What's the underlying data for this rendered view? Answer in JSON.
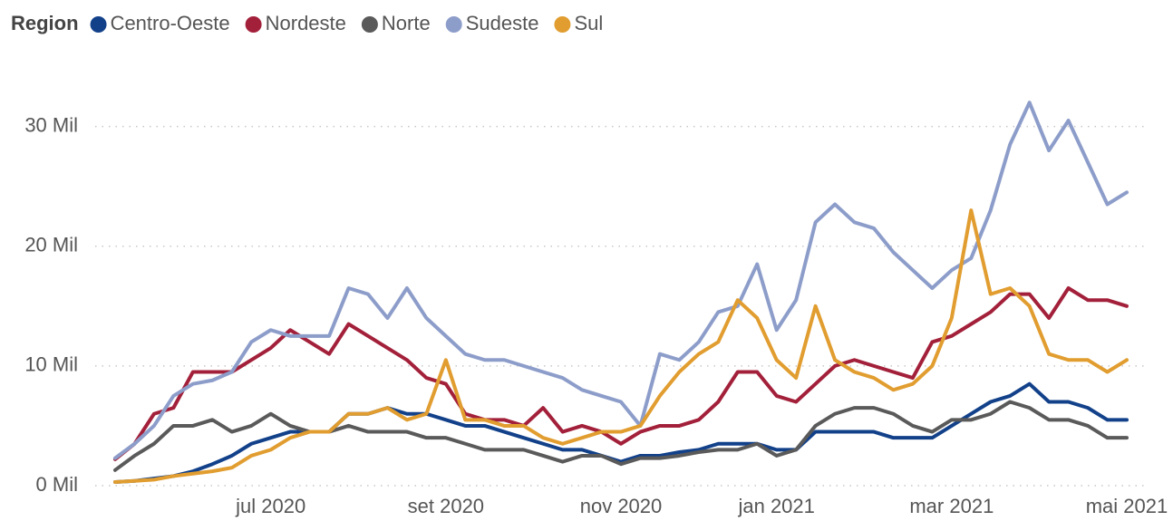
{
  "chart_data": {
    "type": "line",
    "legend_title": "Region",
    "categories": [
      null,
      null,
      null,
      null,
      null,
      null,
      null,
      null,
      "jul 2020",
      null,
      null,
      null,
      null,
      null,
      null,
      null,
      null,
      "set 2020",
      null,
      null,
      null,
      null,
      null,
      null,
      null,
      null,
      "nov 2020",
      null,
      null,
      null,
      null,
      null,
      null,
      null,
      "jan 2021",
      null,
      null,
      null,
      null,
      null,
      null,
      null,
      null,
      "mar 2021",
      null,
      null,
      null,
      null,
      null,
      null,
      null,
      null,
      "mai 2021"
    ],
    "ylim": [
      0,
      33
    ],
    "yticks": [
      {
        "value": 0,
        "label": "0 Mil"
      },
      {
        "value": 10,
        "label": "10 Mil"
      },
      {
        "value": 20,
        "label": "20 Mil"
      },
      {
        "value": 30,
        "label": "30 Mil"
      }
    ],
    "grid": true,
    "series": [
      {
        "name": "Centro-Oeste",
        "color": "#12418a",
        "values": [
          0.3,
          0.4,
          0.6,
          0.8,
          1.2,
          1.8,
          2.5,
          3.5,
          4,
          4.5,
          4.5,
          4.5,
          6,
          6,
          6.5,
          6,
          6,
          5.5,
          5,
          5,
          4.5,
          4,
          3.5,
          3,
          3,
          2.5,
          2,
          2.5,
          2.5,
          2.8,
          3,
          3.5,
          3.5,
          3.5,
          3,
          3,
          4.5,
          4.5,
          4.5,
          4.5,
          4,
          4,
          4,
          5,
          6,
          7,
          7.5,
          8.5,
          7,
          7,
          6.5,
          5.5,
          5.5
        ]
      },
      {
        "name": "Nordeste",
        "color": "#a3203a",
        "values": [
          2.2,
          3.5,
          6,
          6.5,
          9.5,
          9.5,
          9.5,
          10.5,
          11.5,
          13,
          12,
          11,
          13.5,
          12.5,
          11.5,
          10.5,
          9,
          8.5,
          6,
          5.5,
          5.5,
          5,
          6.5,
          4.5,
          5,
          4.5,
          3.5,
          4.5,
          5,
          5,
          5.5,
          7,
          9.5,
          9.5,
          7.5,
          7,
          8.5,
          10,
          10.5,
          10,
          9.5,
          9,
          12,
          12.5,
          13.5,
          14.5,
          16,
          16,
          14,
          16.5,
          15.5,
          15.5,
          15
        ]
      },
      {
        "name": "Norte",
        "color": "#5a5a5a",
        "values": [
          1.3,
          2.5,
          3.5,
          5,
          5,
          5.5,
          4.5,
          5,
          6,
          5,
          4.5,
          4.5,
          5,
          4.5,
          4.5,
          4.5,
          4,
          4,
          3.5,
          3,
          3,
          3,
          2.5,
          2,
          2.5,
          2.5,
          1.8,
          2.3,
          2.3,
          2.5,
          2.8,
          3,
          3,
          3.5,
          2.5,
          3,
          5,
          6,
          6.5,
          6.5,
          6,
          5,
          4.5,
          5.5,
          5.5,
          6,
          7,
          6.5,
          5.5,
          5.5,
          5,
          4,
          4
        ]
      },
      {
        "name": "Sudeste",
        "color": "#8d9dca",
        "values": [
          2.3,
          3.5,
          5,
          7.5,
          8.5,
          8.8,
          9.5,
          12,
          13,
          12.5,
          12.5,
          12.5,
          16.5,
          16,
          14,
          16.5,
          14,
          12.5,
          11,
          10.5,
          10.5,
          10,
          9.5,
          9,
          8,
          7.5,
          7,
          5,
          11,
          10.5,
          12,
          14.5,
          15,
          18.5,
          13,
          15.5,
          22,
          23.5,
          22,
          21.5,
          19.5,
          18,
          16.5,
          18,
          19,
          23,
          28.5,
          32,
          28,
          30.5,
          27,
          23.5,
          24.5
        ]
      },
      {
        "name": "Sul",
        "color": "#e19d2f",
        "values": [
          0.3,
          0.4,
          0.5,
          0.8,
          1,
          1.2,
          1.5,
          2.5,
          3,
          4,
          4.5,
          4.5,
          6,
          6,
          6.5,
          5.5,
          6,
          10.5,
          5.5,
          5.5,
          5,
          5,
          4,
          3.5,
          4,
          4.5,
          4.5,
          5,
          7.5,
          9.5,
          11,
          12,
          15.5,
          14,
          10.5,
          9,
          15,
          10.5,
          9.5,
          9,
          8,
          8.5,
          10,
          14,
          23,
          16,
          16.5,
          15,
          11,
          10.5,
          10.5,
          9.5,
          10.5
        ]
      }
    ]
  }
}
